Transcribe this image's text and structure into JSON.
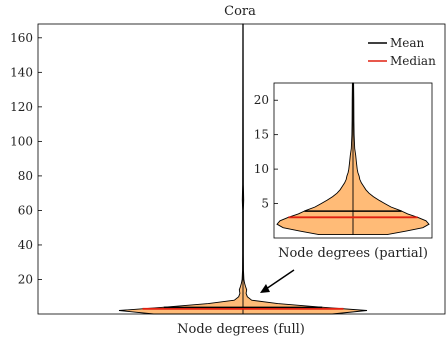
{
  "chart_data": [
    {
      "type": "violin",
      "title": "Cora",
      "xlabel": "Node degrees (full)",
      "ylabel": "",
      "ylim": [
        0,
        168
      ],
      "yticks": [
        20,
        40,
        60,
        80,
        100,
        120,
        140,
        160
      ],
      "mean": 3.9,
      "median": 3.0,
      "y_max": 168,
      "legend": {
        "placement": "top-right",
        "entries": [
          {
            "label": "Mean",
            "color": "#000000"
          },
          {
            "label": "Median",
            "color": "#e02010"
          }
        ]
      },
      "fill_color": "#ffbb77",
      "outline_color": "#000000",
      "profile": [
        {
          "y": 0,
          "w": 0.72
        },
        {
          "y": 2,
          "w": 1.0
        },
        {
          "y": 4,
          "w": 0.62
        },
        {
          "y": 6,
          "w": 0.28
        },
        {
          "y": 8,
          "w": 0.07
        },
        {
          "y": 10,
          "w": 0.035
        },
        {
          "y": 12,
          "w": 0.025
        },
        {
          "y": 14,
          "w": 0.03
        },
        {
          "y": 16,
          "w": 0.02
        },
        {
          "y": 18,
          "w": 0.012
        },
        {
          "y": 20,
          "w": 0.007
        },
        {
          "y": 25,
          "w": 0.004
        },
        {
          "y": 35,
          "w": 0.003
        },
        {
          "y": 60,
          "w": 0.003
        },
        {
          "y": 66,
          "w": 0.006
        },
        {
          "y": 75,
          "w": 0.003
        },
        {
          "y": 168,
          "w": 0.002
        }
      ]
    },
    {
      "type": "violin",
      "title": "",
      "xlabel": "Node degrees (partial)",
      "ylabel": "",
      "ylim": [
        0,
        22.5
      ],
      "yticks": [
        5,
        10,
        15,
        20
      ],
      "mean": 3.9,
      "median": 3.0,
      "fill_color": "#ffbb77",
      "outline_color": "#000000",
      "profile": [
        {
          "y": 0.5,
          "w": 0.45
        },
        {
          "y": 1,
          "w": 0.7
        },
        {
          "y": 1.5,
          "w": 0.92
        },
        {
          "y": 2,
          "w": 1.0
        },
        {
          "y": 2.5,
          "w": 0.96
        },
        {
          "y": 3,
          "w": 0.85
        },
        {
          "y": 3.5,
          "w": 0.72
        },
        {
          "y": 4,
          "w": 0.62
        },
        {
          "y": 4.5,
          "w": 0.5
        },
        {
          "y": 5,
          "w": 0.42
        },
        {
          "y": 5.5,
          "w": 0.34
        },
        {
          "y": 6,
          "w": 0.27
        },
        {
          "y": 6.5,
          "w": 0.21
        },
        {
          "y": 7,
          "w": 0.17
        },
        {
          "y": 7.5,
          "w": 0.14
        },
        {
          "y": 8,
          "w": 0.11
        },
        {
          "y": 8.5,
          "w": 0.09
        },
        {
          "y": 9,
          "w": 0.08
        },
        {
          "y": 9.5,
          "w": 0.065
        },
        {
          "y": 10,
          "w": 0.055
        },
        {
          "y": 11,
          "w": 0.045
        },
        {
          "y": 12,
          "w": 0.035
        },
        {
          "y": 13,
          "w": 0.022
        },
        {
          "y": 14,
          "w": 0.018
        },
        {
          "y": 15,
          "w": 0.015
        },
        {
          "y": 17,
          "w": 0.012
        },
        {
          "y": 20,
          "w": 0.01
        },
        {
          "y": 22.5,
          "w": 0.008
        }
      ]
    }
  ]
}
